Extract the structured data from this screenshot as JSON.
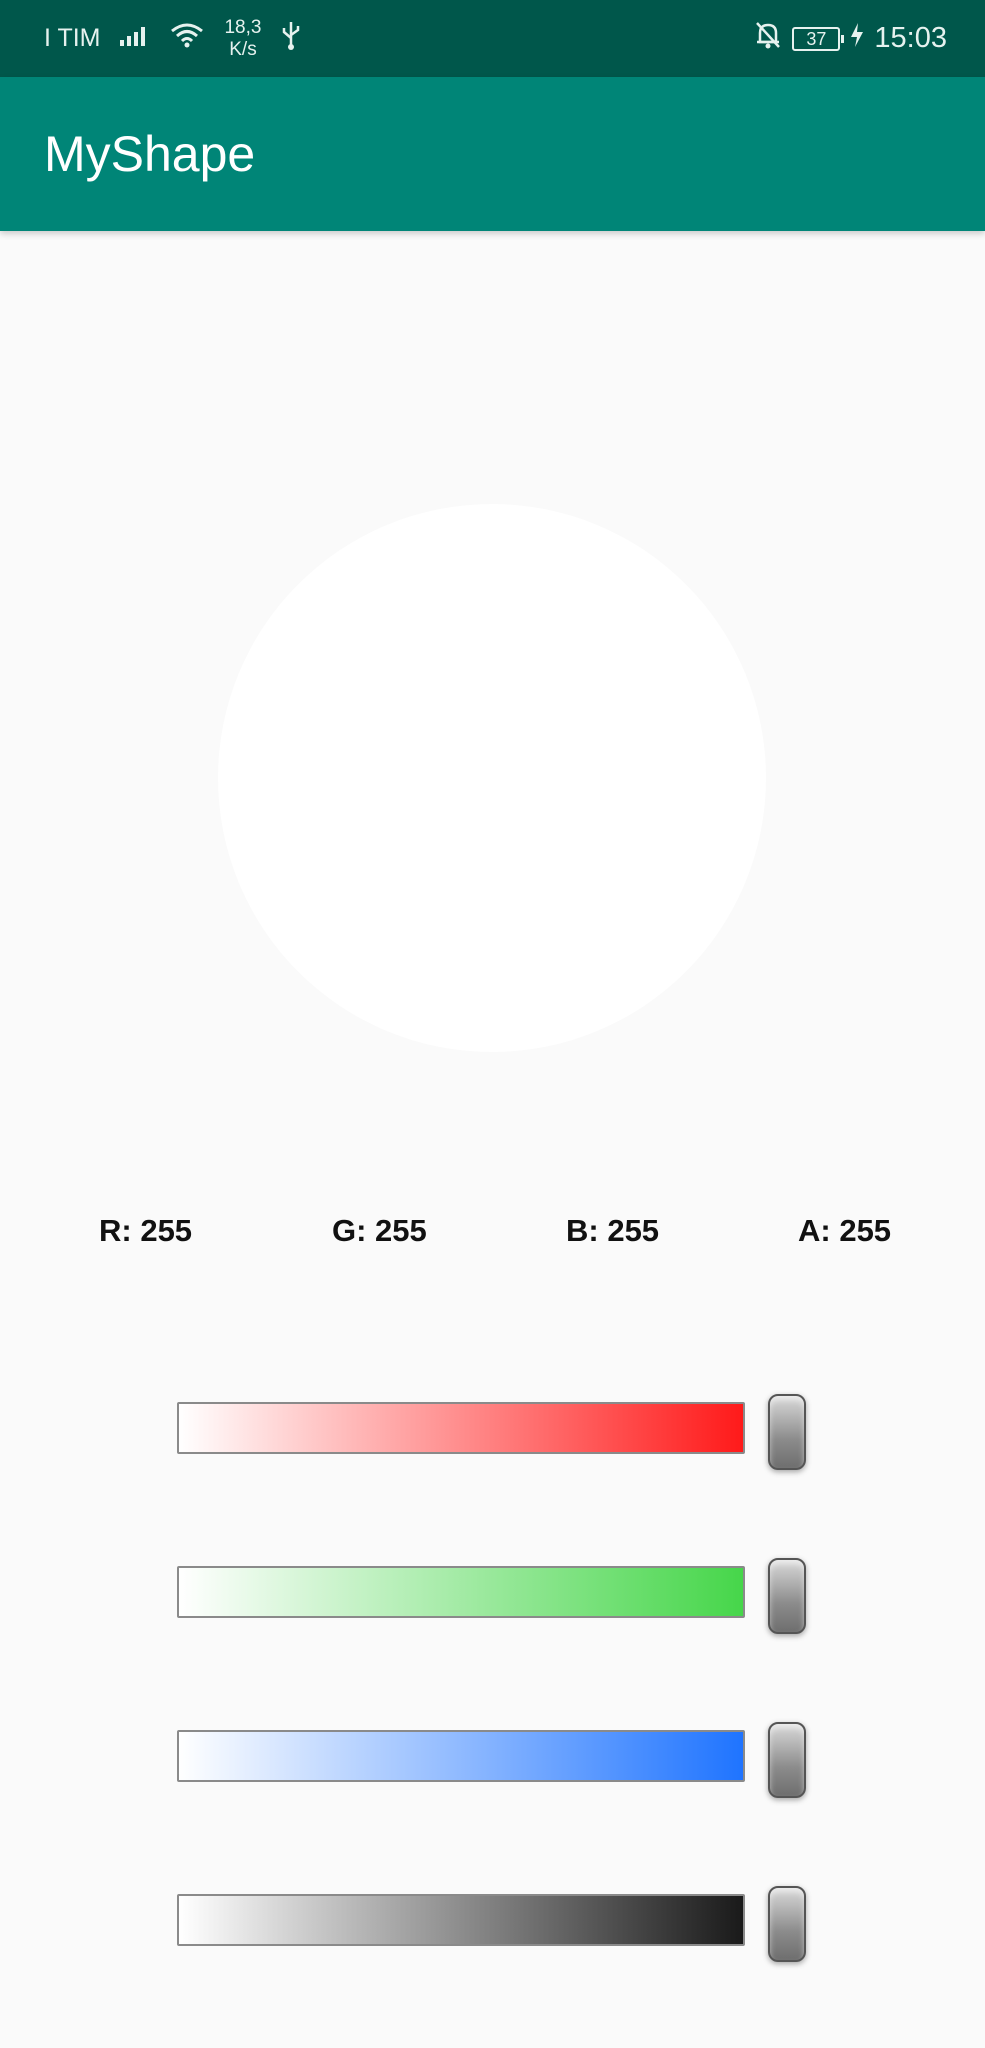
{
  "status_bar": {
    "carrier": "I TIM",
    "net_speed_value": "18,3",
    "net_speed_unit": "K/s",
    "battery_level": "37",
    "time": "15:03"
  },
  "app_bar": {
    "title": "MyShape"
  },
  "shape": {
    "type": "circle",
    "color": "#ffffff"
  },
  "rgba_labels": {
    "r": "R: 255",
    "g": "G: 255",
    "b": "B: 255",
    "a": "A: 255"
  },
  "sliders": [
    {
      "channel": "red",
      "value": 255,
      "max": 255,
      "color": "#ff1a1a"
    },
    {
      "channel": "green",
      "value": 255,
      "max": 255,
      "color": "#46d64a"
    },
    {
      "channel": "blue",
      "value": 255,
      "max": 255,
      "color": "#1f74ff"
    },
    {
      "channel": "alpha",
      "value": 255,
      "max": 255,
      "color": "#1a1a1a"
    }
  ],
  "colors": {
    "status_bar": "#00574b",
    "app_bar": "#008577",
    "background": "#fafafa"
  }
}
